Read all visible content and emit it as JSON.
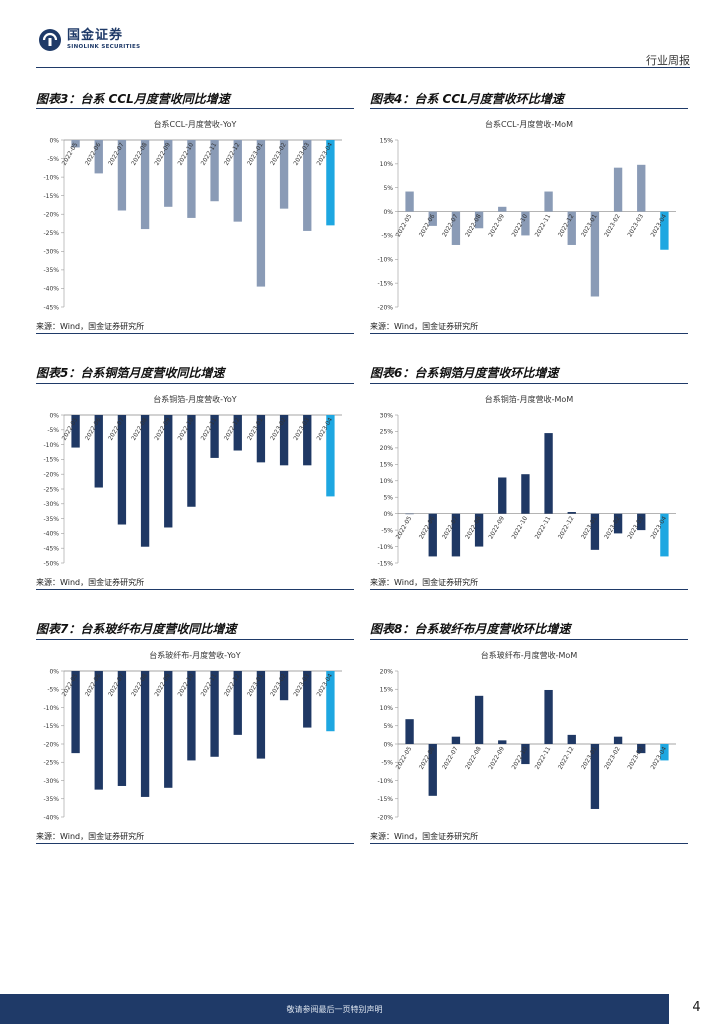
{
  "header": {
    "logo_cn": "国金证券",
    "logo_en": "SINOLINK SECURITIES",
    "section": "行业周报"
  },
  "figures": [
    {
      "label": "图表3：台系 CCL月度营收同比增速",
      "source": "来源：Wind，国金证券研究所"
    },
    {
      "label": "图表4：台系 CCL月度营收环比增速",
      "source": "来源：Wind，国金证券研究所"
    },
    {
      "label": "图表5：台系铜箔月度营收同比增速",
      "source": "来源：Wind，国金证券研究所"
    },
    {
      "label": "图表6：台系铜箔月度营收环比增速",
      "source": "来源：Wind，国金证券研究所"
    },
    {
      "label": "图表7：台系玻纤布月度营收同比增速",
      "source": "来源：Wind，国金证券研究所"
    },
    {
      "label": "图表8：台系玻纤布月度营收环比增速",
      "source": "来源：Wind，国金证券研究所"
    }
  ],
  "colors": {
    "steel": "#8a9bb6",
    "navy": "#1f3864",
    "accent": "#1ea7e1",
    "brand": "#1f3a68"
  },
  "chart_data": [
    {
      "type": "bar",
      "title": "台系CCL-月度营收-YoY",
      "categories": [
        "2022-05",
        "2022-06",
        "2022-07",
        "2022-08",
        "2022-09",
        "2022-10",
        "2022-11",
        "2022-12",
        "2023-01",
        "2023-02",
        "2023-03",
        "2023-04"
      ],
      "values": [
        -2,
        -9,
        -19,
        -24,
        -18,
        -21,
        -16.5,
        -22,
        -39.5,
        -18.5,
        -24.5,
        -23
      ],
      "ylim": [
        -45,
        0
      ],
      "step": 5,
      "ticks": [
        "0%",
        "-5%",
        "-10%",
        "-15%",
        "-20%",
        "-25%",
        "-30%",
        "-35%",
        "-40%",
        "-45%"
      ],
      "color": "steel",
      "highlight_last": true
    },
    {
      "type": "bar",
      "title": "台系CCL-月度营收-MoM",
      "categories": [
        "2022-05",
        "2022-06",
        "2022-07",
        "2022-08",
        "2022-09",
        "2022-10",
        "2022-11",
        "2022-12",
        "2023-01",
        "2023-02",
        "2023-03",
        "2023-04"
      ],
      "values": [
        4.2,
        -3,
        -7,
        -3.5,
        1,
        -5,
        4.2,
        -7,
        -17.8,
        9.2,
        9.8,
        -8
      ],
      "ylim": [
        -20,
        15
      ],
      "step": 5,
      "ticks": [
        "15%",
        "10%",
        "5%",
        "0%",
        "-5%",
        "-10%",
        "-15%",
        "-20%"
      ],
      "color": "steel",
      "highlight_last": true
    },
    {
      "type": "bar",
      "title": "台系铜箔-月度营收-YoY",
      "categories": [
        "2022-05",
        "2022-06",
        "2022-07",
        "2022-08",
        "2022-09",
        "2022-10",
        "2022-11",
        "2022-12",
        "2023-01",
        "2023-02",
        "2023-03",
        "2023-04"
      ],
      "values": [
        -11,
        -24.5,
        -37,
        -44.5,
        -38,
        -31,
        -14.5,
        -12,
        -16,
        -17,
        -17,
        -27.5
      ],
      "ylim": [
        -50,
        0
      ],
      "step": 5,
      "ticks": [
        "0%",
        "-5%",
        "-10%",
        "-15%",
        "-20%",
        "-25%",
        "-30%",
        "-35%",
        "-40%",
        "-45%",
        "-50%"
      ],
      "color": "navy",
      "highlight_last": true
    },
    {
      "type": "bar",
      "title": "台系铜箔-月度营收-MoM",
      "categories": [
        "2022-05",
        "2022-06",
        "2022-07",
        "2022-08",
        "2022-09",
        "2022-10",
        "2022-11",
        "2022-12",
        "2023-01",
        "2023-02",
        "2023-03",
        "2023-04"
      ],
      "values": [
        0,
        -13,
        -13,
        -10,
        11,
        12,
        24.5,
        0.5,
        -11,
        -6,
        -5,
        -13
      ],
      "ylim": [
        -15,
        30
      ],
      "step": 5,
      "ticks": [
        "30%",
        "25%",
        "20%",
        "15%",
        "10%",
        "5%",
        "0%",
        "-5%",
        "-10%",
        "-15%"
      ],
      "color": "navy",
      "highlight_last": true
    },
    {
      "type": "bar",
      "title": "台系玻纤布-月度营收-YoY",
      "categories": [
        "2022-05",
        "2022-06",
        "2022-07",
        "2022-08",
        "2022-09",
        "2022-10",
        "2022-11",
        "2022-12",
        "2023-01",
        "2023-02",
        "2023-03",
        "2023-04"
      ],
      "values": [
        -22.5,
        -32.5,
        -31.5,
        -34.5,
        -32,
        -24.5,
        -23.5,
        -17.5,
        -24,
        -8,
        -15.5,
        -16.5
      ],
      "ylim": [
        -40,
        0
      ],
      "step": 5,
      "ticks": [
        "0%",
        "-5%",
        "-10%",
        "-15%",
        "-20%",
        "-25%",
        "-30%",
        "-35%",
        "-40%"
      ],
      "color": "navy",
      "highlight_last": true
    },
    {
      "type": "bar",
      "title": "台系玻纤布-月度营收-MoM",
      "categories": [
        "2022-05",
        "2022-06",
        "2022-07",
        "2022-08",
        "2022-09",
        "2022-10",
        "2022-11",
        "2022-12",
        "2023-01",
        "2023-02",
        "2023-03",
        "2023-04"
      ],
      "values": [
        6.8,
        -14.2,
        2,
        13.2,
        1,
        -5.5,
        14.8,
        2.5,
        -17.8,
        2,
        -2.5,
        -4.5
      ],
      "ylim": [
        -20,
        20
      ],
      "step": 5,
      "ticks": [
        "20%",
        "15%",
        "10%",
        "5%",
        "0%",
        "-5%",
        "-10%",
        "-15%",
        "-20%"
      ],
      "color": "navy",
      "highlight_last": true
    }
  ],
  "footer": {
    "disclaimer": "敬请参阅最后一页特别声明",
    "page": "4"
  }
}
